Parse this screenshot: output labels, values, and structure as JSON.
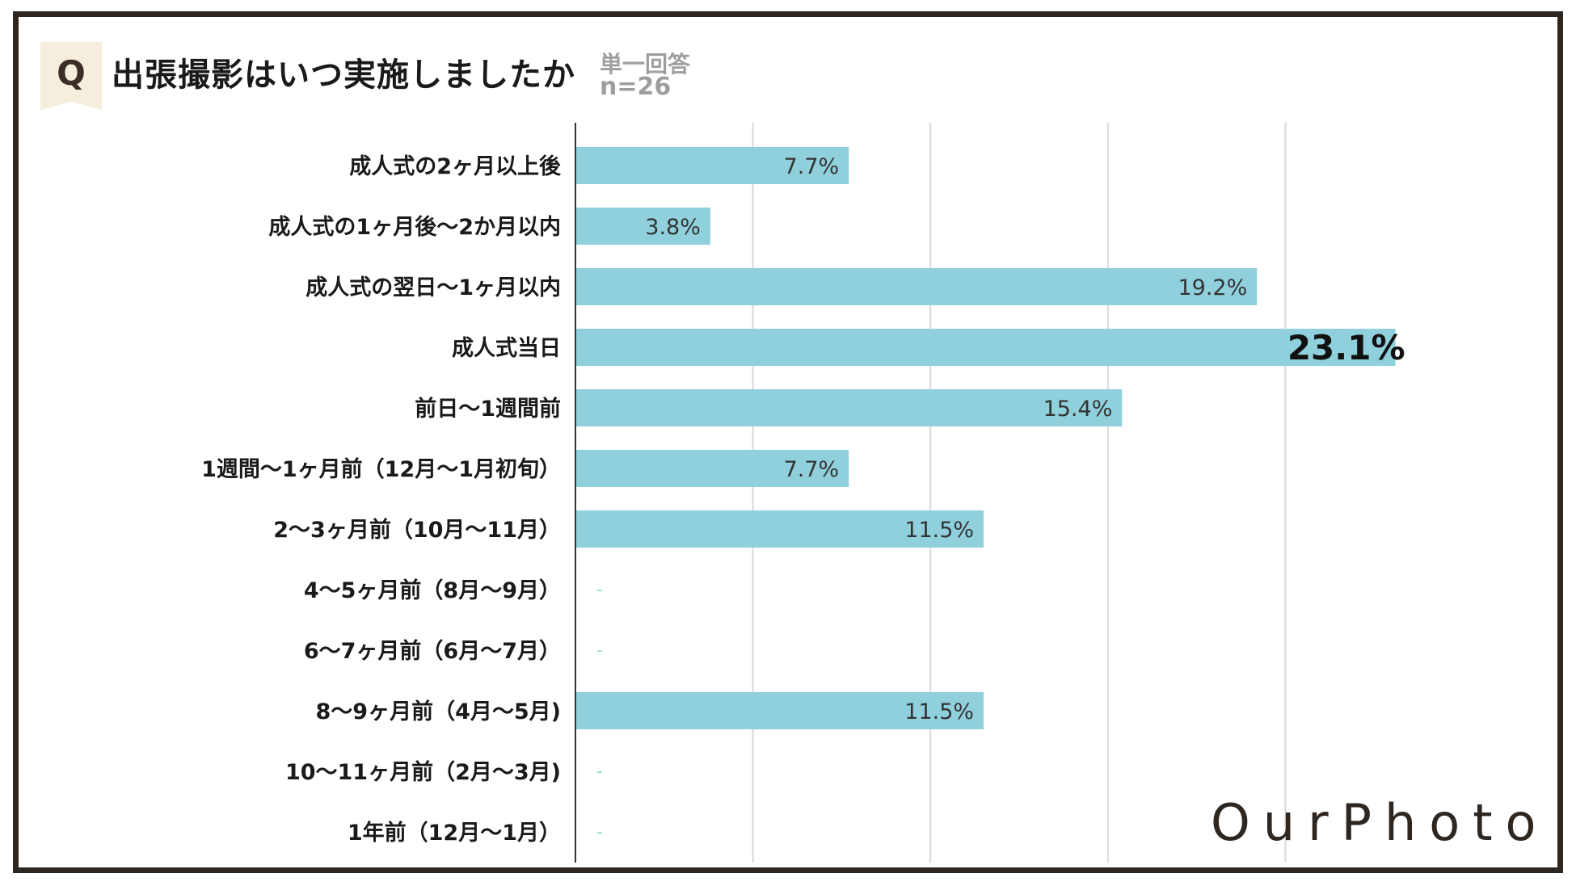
{
  "header": {
    "q_letter": "Q",
    "title": "出張撮影はいつ実施しましたか",
    "note_answer_type": "単一回答",
    "note_n": "n=26"
  },
  "logo": {
    "text": "OurPhoto"
  },
  "colors": {
    "bar": "#8fd0dc",
    "frame": "#2e2620",
    "badge": "#f5eedd",
    "grid": "#d9d9d9",
    "axis": "#333333"
  },
  "chart_data": {
    "type": "bar",
    "orientation": "horizontal",
    "categories": [
      "成人式の2ヶ月以上後",
      "成人式の1ヶ月後～2か月以内",
      "成人式の翌日～1ヶ月以内",
      "成人式当日",
      "前日～1週間前",
      "1週間～1ヶ月前（12月～1月初旬）",
      "2～3ヶ月前（10月～11月）",
      "4～5ヶ月前（8月～9月）",
      "6～7ヶ月前（6月～7月）",
      "8～9ヶ月前（4月～5月)",
      "10～11ヶ月前（2月～3月)",
      "1年前（12月～1月）"
    ],
    "values": [
      7.7,
      3.8,
      19.2,
      23.1,
      15.4,
      7.7,
      11.5,
      0,
      0,
      11.5,
      0,
      0
    ],
    "labels": [
      "7.7%",
      "3.8%",
      "19.2%",
      "23.1%",
      "15.4%",
      "7.7%",
      "11.5%",
      "-",
      "-",
      "11.5%",
      "-",
      "-"
    ],
    "highlight_index": 3,
    "xlim": [
      0,
      25
    ],
    "grid": true,
    "grid_interval": 5,
    "legend": "none"
  }
}
